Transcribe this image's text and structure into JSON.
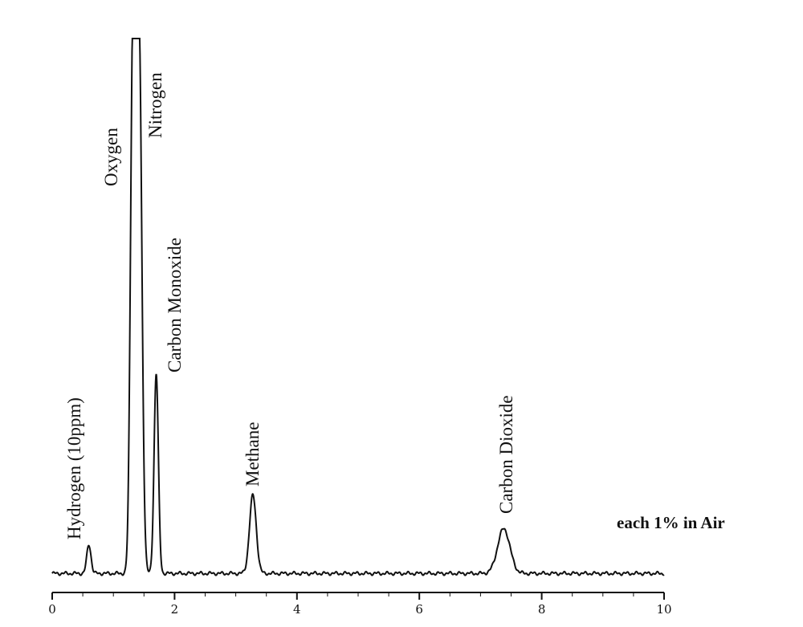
{
  "chart_data": {
    "type": "line",
    "title": "",
    "xlabel": "",
    "ylabel": "",
    "xlim": [
      0,
      10
    ],
    "ylim": [
      0,
      1
    ],
    "x_ticks": [
      "0",
      "2",
      "4",
      "6",
      "8",
      "10"
    ],
    "grid": false,
    "baseline": 0.01,
    "note": "each 1% in Air",
    "line_color": "#111111",
    "peaks": [
      {
        "name": "Hydrogen (10ppm)",
        "retention_time": 0.6,
        "height": 0.053,
        "width": 0.035
      },
      {
        "name": "Oxygen",
        "retention_time": 1.32,
        "height": 1.0,
        "width": 0.04
      },
      {
        "name": "Nitrogen",
        "retention_time": 1.42,
        "height": 1.0,
        "width": 0.045
      },
      {
        "name": "Carbon Monoxide",
        "retention_time": 1.7,
        "height": 0.37,
        "width": 0.035
      },
      {
        "name": "Methane",
        "retention_time": 3.28,
        "height": 0.145,
        "width": 0.055
      },
      {
        "name": "Carbon Dioxide",
        "retention_time": 7.38,
        "height": 0.083,
        "width": 0.1
      }
    ]
  }
}
